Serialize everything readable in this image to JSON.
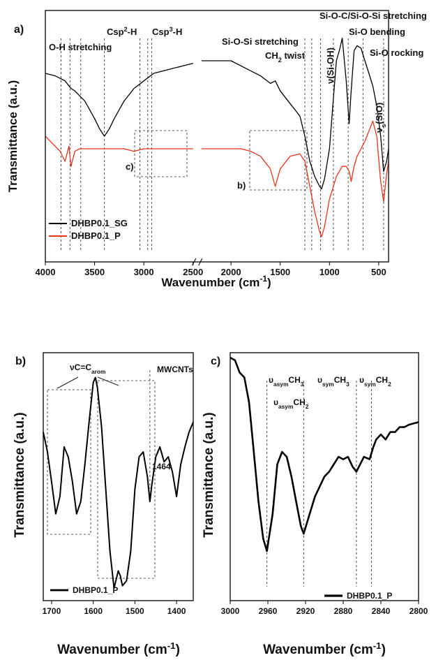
{
  "chart_data": [
    {
      "type": "line",
      "panel_label": "a)",
      "xlabel": [
        {
          "text": "Wavenumber (cm"
        },
        {
          "text": "-1",
          "sup": true
        },
        {
          "text": ")"
        }
      ],
      "ylabel": [
        {
          "text": "Transmittance (a.u.)"
        }
      ],
      "xlim": [
        4000,
        400
      ],
      "xbreak": [
        2500,
        2300
      ],
      "ylim": [
        0,
        100
      ],
      "xticks": [
        4000,
        3500,
        3000,
        2500,
        2000,
        1500,
        1000,
        500
      ],
      "legend": "lower left",
      "x": [
        4000,
        3900,
        3850,
        3800,
        3760,
        3740,
        3700,
        3650,
        3600,
        3500,
        3450,
        3400,
        3350,
        3300,
        3200,
        3100,
        3000,
        2900,
        2800,
        2700,
        2600,
        2500,
        2400,
        2300,
        2000,
        1900,
        1800,
        1700,
        1600,
        1550,
        1500,
        1400,
        1300,
        1250,
        1200,
        1150,
        1100,
        1080,
        1050,
        1000,
        960,
        930,
        900,
        870,
        830,
        800,
        780,
        750,
        720,
        680,
        640,
        600,
        560,
        520,
        480,
        450,
        420,
        400
      ],
      "series": [
        {
          "name": "DHBP0.1_SG",
          "color": "#000000",
          "values": [
            75,
            74,
            73,
            72,
            70,
            69,
            68,
            66,
            64,
            57,
            53,
            50,
            53,
            57,
            64,
            69,
            72,
            75,
            76,
            77,
            78,
            79,
            null,
            80,
            80,
            78,
            76,
            74,
            71,
            72,
            68,
            63,
            58,
            50,
            40,
            34,
            30,
            29,
            33,
            45,
            65,
            80,
            84,
            89,
            72,
            55,
            68,
            84,
            86,
            85,
            80,
            75,
            70,
            62,
            50,
            36,
            40,
            45
          ]
        },
        {
          "name": "DHBP0.1_P",
          "color": "#e8341c",
          "values": [
            50,
            46,
            44,
            40,
            46,
            38,
            44,
            45,
            45,
            45,
            45,
            45,
            45,
            45,
            45,
            44,
            45,
            45,
            45,
            45,
            45,
            45,
            null,
            45,
            45,
            45,
            44,
            42,
            37,
            30,
            37,
            42,
            43,
            40,
            30,
            20,
            12,
            10,
            14,
            25,
            30,
            34,
            36,
            38,
            38,
            36,
            32,
            38,
            42,
            45,
            48,
            52,
            56,
            50,
            32,
            24,
            35,
            40
          ]
        }
      ],
      "markers": [
        3840,
        3750,
        3640,
        3400,
        3040,
        2960,
        2920,
        1250,
        1180,
        1090,
        960,
        810,
        660,
        450
      ],
      "annotations": [
        [
          {
            "text": "O-H stretching"
          }
        ],
        [
          {
            "text": "Csp"
          },
          {
            "text": "2",
            "sup": true
          },
          {
            "text": "-H"
          }
        ],
        [
          {
            "text": "Csp"
          },
          {
            "text": "3",
            "sup": true
          },
          {
            "text": "-H"
          }
        ],
        [
          {
            "text": "Si-O-Si stretching"
          }
        ],
        [
          {
            "text": "CH"
          },
          {
            "text": "2",
            "sub": true
          },
          {
            "text": " twist"
          }
        ],
        [
          {
            "text": "Si-O-C/Si-O-Si stretching"
          }
        ],
        [
          {
            "text": "ν(Si-OH)"
          }
        ],
        [
          {
            "text": "Si-O bending"
          }
        ],
        [
          {
            "text": "Si-O rocking"
          }
        ],
        [
          {
            "text": "ν"
          },
          {
            "text": "s",
            "sub": true
          },
          {
            "text": "(SiO)"
          }
        ],
        [
          {
            "text": "c)"
          }
        ],
        [
          {
            "text": "b)"
          }
        ]
      ]
    },
    {
      "type": "line",
      "panel_label": "b)",
      "xlabel": [
        {
          "text": "Wavenumber (cm"
        },
        {
          "text": "-1",
          "sup": true
        },
        {
          "text": ")"
        }
      ],
      "ylabel": [
        {
          "text": "Transmittance (a.u.)"
        }
      ],
      "xlim": [
        1720,
        1360
      ],
      "ylim": [
        0,
        100
      ],
      "xticks": [
        1700,
        1600,
        1500,
        1400
      ],
      "legend": "lower left",
      "x": [
        1720,
        1710,
        1700,
        1690,
        1680,
        1670,
        1660,
        1650,
        1640,
        1630,
        1620,
        1610,
        1600,
        1595,
        1590,
        1580,
        1570,
        1560,
        1550,
        1540,
        1535,
        1530,
        1520,
        1510,
        1500,
        1490,
        1480,
        1470,
        1464,
        1460,
        1450,
        1440,
        1430,
        1420,
        1410,
        1400,
        1390,
        1380,
        1370,
        1360
      ],
      "series": [
        {
          "name": "DHBP0.1_P",
          "color": "#000000",
          "values": [
            68,
            60,
            48,
            35,
            42,
            62,
            58,
            48,
            35,
            40,
            55,
            72,
            88,
            90,
            86,
            70,
            45,
            20,
            5,
            12,
            10,
            6,
            8,
            20,
            45,
            58,
            60,
            50,
            40,
            46,
            58,
            62,
            56,
            58,
            52,
            42,
            55,
            62,
            68,
            72
          ]
        }
      ],
      "markers": [
        1464
      ],
      "annotations": [
        [
          {
            "text": "νC=C"
          },
          {
            "text": "arom",
            "sub": true
          }
        ],
        [
          {
            "text": "MWCNTs"
          }
        ],
        [
          {
            "text": "1464"
          }
        ]
      ]
    },
    {
      "type": "line",
      "panel_label": "c)",
      "xlabel": [
        {
          "text": "Wavenumber (cm"
        },
        {
          "text": "-1",
          "sup": true
        },
        {
          "text": ")"
        }
      ],
      "ylabel": [
        {
          "text": "Transmittance (a.u.)"
        }
      ],
      "xlim": [
        3000,
        2800
      ],
      "ylim": [
        0,
        100
      ],
      "xticks": [
        3000,
        2960,
        2920,
        2880,
        2840,
        2800
      ],
      "legend": "lower right",
      "x": [
        3000,
        2995,
        2990,
        2985,
        2980,
        2975,
        2970,
        2965,
        2961,
        2955,
        2950,
        2945,
        2940,
        2935,
        2930,
        2925,
        2922,
        2918,
        2910,
        2900,
        2895,
        2890,
        2885,
        2880,
        2875,
        2870,
        2866,
        2862,
        2858,
        2852,
        2848,
        2845,
        2840,
        2835,
        2830,
        2825,
        2820,
        2815,
        2810,
        2800
      ],
      "series": [
        {
          "name": "DHBP0.1_P",
          "color": "#000000",
          "values": [
            98,
            97,
            92,
            90,
            80,
            60,
            40,
            25,
            20,
            35,
            55,
            60,
            58,
            50,
            40,
            30,
            27,
            32,
            42,
            50,
            52,
            55,
            58,
            57,
            58,
            54,
            52,
            55,
            58,
            57,
            62,
            65,
            67,
            65,
            68,
            68,
            70,
            70,
            71,
            72
          ]
        }
      ],
      "markers": [
        2961,
        2922,
        2866,
        2850
      ],
      "annotations": [
        [
          {
            "text": "υ"
          },
          {
            "text": "asym",
            "sub": true
          },
          {
            "text": "CH"
          },
          {
            "text": "3",
            "sub": true
          }
        ],
        [
          {
            "text": "υ"
          },
          {
            "text": "asym",
            "sub": true
          },
          {
            "text": "CH"
          },
          {
            "text": "2",
            "sub": true
          }
        ],
        [
          {
            "text": "υ"
          },
          {
            "text": "sym",
            "sub": true
          },
          {
            "text": "CH"
          },
          {
            "text": "3",
            "sub": true
          }
        ],
        [
          {
            "text": "υ"
          },
          {
            "text": "sym",
            "sub": true
          },
          {
            "text": "CH"
          },
          {
            "text": "2",
            "sub": true
          }
        ]
      ]
    }
  ]
}
